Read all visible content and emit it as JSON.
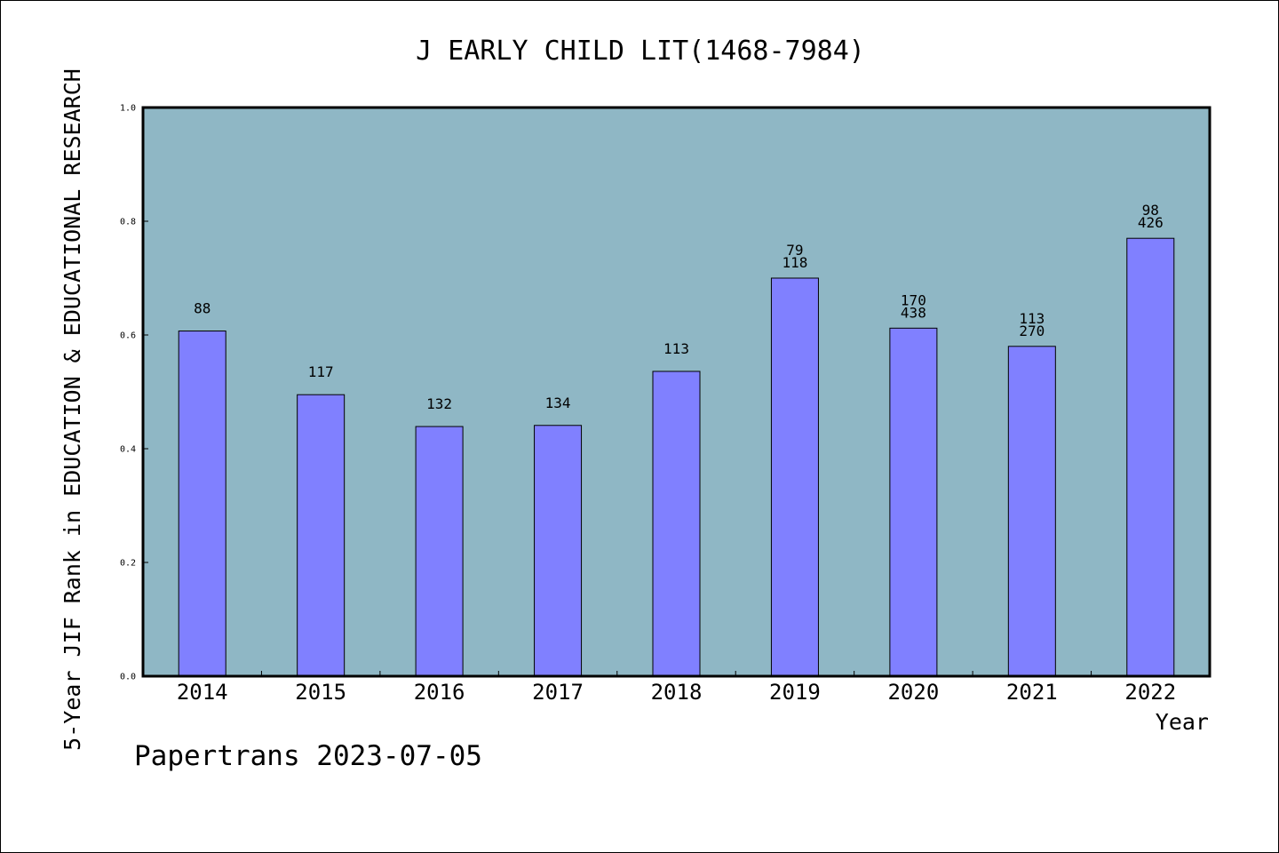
{
  "chart_data": {
    "type": "bar",
    "title": "J EARLY CHILD LIT(1468-7984)",
    "xlabel": "Year",
    "ylabel": "5-Year JIF Rank in EDUCATION & EDUCATIONAL RESEARCH",
    "ylim": [
      0,
      1.0
    ],
    "yticks": [
      "0.0",
      "0.2",
      "0.4",
      "0.6",
      "0.8",
      "1.0"
    ],
    "categories": [
      "2014",
      "2015",
      "2016",
      "2017",
      "2018",
      "2019",
      "2020",
      "2021",
      "2022"
    ],
    "values": [
      0.607,
      0.495,
      0.439,
      0.441,
      0.536,
      0.7,
      0.612,
      0.58,
      0.77
    ],
    "labels": [
      [
        "88"
      ],
      [
        "117"
      ],
      [
        "132"
      ],
      [
        "134"
      ],
      [
        "113"
      ],
      [
        "79",
        "118"
      ],
      [
        "170",
        "438"
      ],
      [
        "113",
        "270"
      ],
      [
        "98",
        "426"
      ]
    ],
    "grid": false,
    "colors": {
      "plot_bg": "#8fb7c5",
      "bar": "#8080ff",
      "bar_edge": "#000000"
    }
  },
  "watermark": "Papertrans 2023-07-05"
}
